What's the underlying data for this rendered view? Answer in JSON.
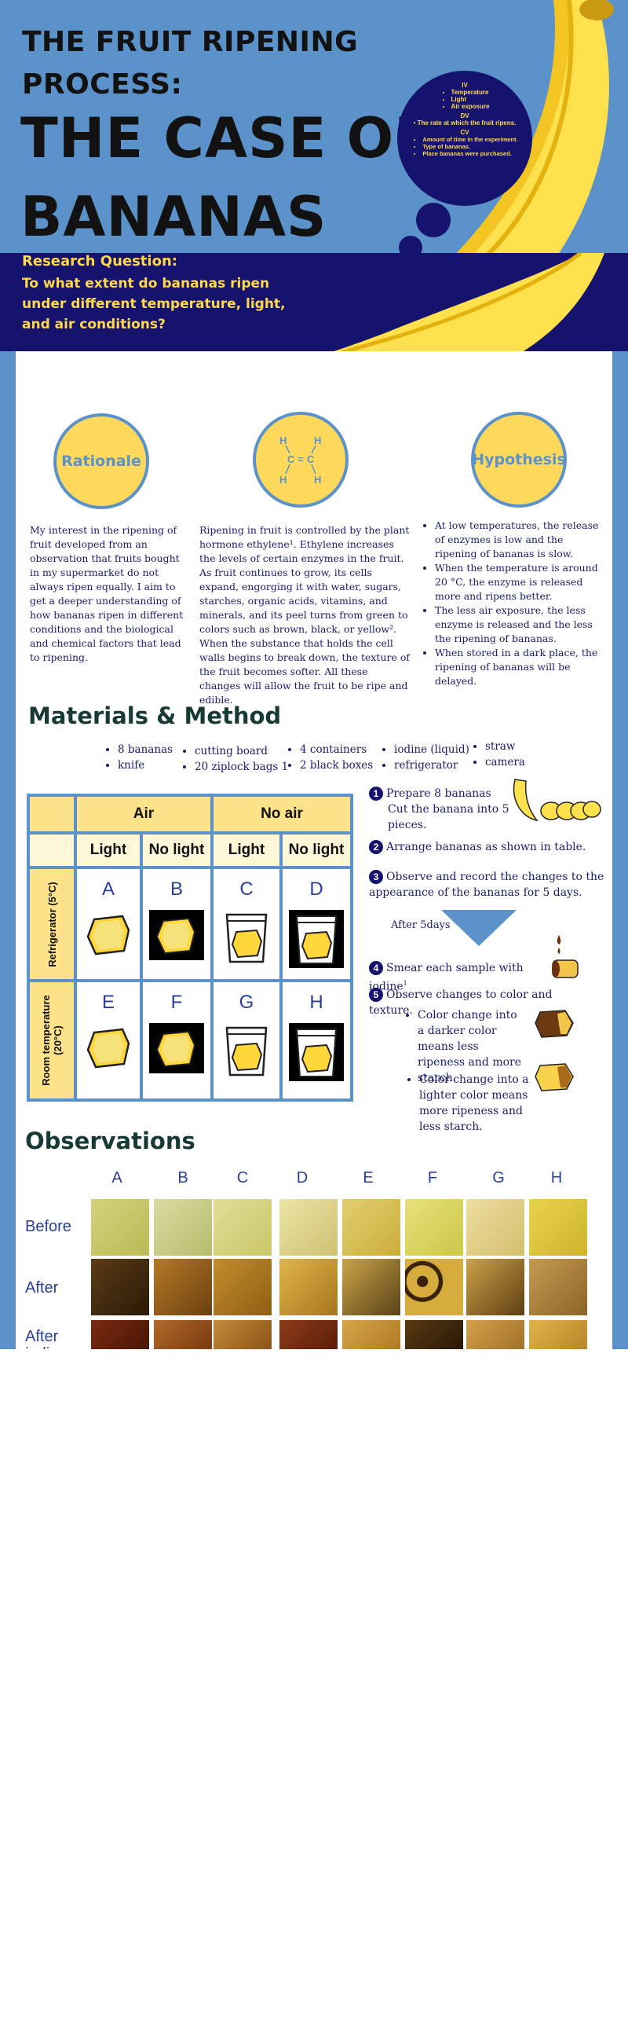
{
  "header": {
    "title_line1": "THE FRUIT RIPENING",
    "title_line2": "PROCESS:",
    "title_line3": "THE CASE OF",
    "title_line4": "BANANAS",
    "research_question_label": "Research Question:",
    "research_question": "To what extent do bananas ripen under different temperature, light, and air conditions?"
  },
  "variables": {
    "iv_label": "IV",
    "iv_items": [
      "Temperature",
      "Light",
      "Air exposure"
    ],
    "dv_label": "DV",
    "dv_text": "The rate at which the fruit ripens.",
    "cv_label": "CV",
    "cv_items": [
      "Amount of time in the experiment.",
      "Type of bananas.",
      "Place bananas were purchased."
    ]
  },
  "rationale": {
    "heading": "Rationale",
    "text": "My interest in the ripening of fruit developed from an observation that fruits bought in my supermarket do not always ripen equally. I aim to get a deeper understanding of how bananas ripen in different conditions and the biological and chemical factors that lead to ripening."
  },
  "molecule": {
    "h": "H",
    "c": "C",
    "eq": "="
  },
  "background": {
    "text": "Ripening in fruit is controlled by the plant hormone ethylene¹. Ethylene increases the levels of certain enzymes in the fruit. As fruit continues to grow, its cells expand, engorging it with water, sugars, starches, organic acids, vitamins, and minerals, and its peel turns from green to colors such as brown, black, or yellow². When the substance that holds the cell walls begins to break down, the texture of the fruit becomes softer. All these changes will allow the fruit to be ripe and edible."
  },
  "hypothesis": {
    "heading": "Hypothesis",
    "items": [
      "At low temperatures, the release of enzymes is low and the ripening of bananas is slow.",
      "When the temperature is around 20 °C, the enzyme is released more and ripens better.",
      "The less air exposure, the less enzyme is released and the less the ripening of bananas.",
      "When stored in a dark place, the ripening of bananas will be delayed."
    ]
  },
  "materials": {
    "title": "Materials & Method",
    "col1": [
      "8 bananas",
      "knife"
    ],
    "col2": [
      "cutting board",
      "20 ziplock bags 1"
    ],
    "col3": [
      "4 containers",
      "2 black boxes"
    ],
    "col4": [
      "iodine (liquid)",
      "refrigerator"
    ],
    "col5": [
      "straw",
      "camera"
    ]
  },
  "table": {
    "air": "Air",
    "no_air": "No air",
    "light": "Light",
    "no_light": "No light",
    "row1": "Refrigerator (5°C)",
    "row2_a": "Room temperature",
    "row2_b": "(20°C)",
    "samples": [
      "A",
      "B",
      "C",
      "D",
      "E",
      "F",
      "G",
      "H"
    ]
  },
  "steps": {
    "s1_num": "1",
    "s1_a": "Prepare 8 bananas",
    "s1_b": "Cut the banana into 5 pieces.",
    "s2_num": "2",
    "s2": "Arrange bananas as shown in table.",
    "s3_num": "3",
    "s3": "Observe and record the changes to the appearance of the bananas for 5 days.",
    "after": "After 5days",
    "s4_num": "4",
    "s4": "Smear each sample with iodine",
    "s4_sup": "1",
    "s5_num": "5",
    "s5": "Observe changes to color and texture.",
    "bullet1": "Color change into a darker color means less ripeness and more starch.",
    "bullet2": "Color change into a lighter color means more ripeness and less starch."
  },
  "observations": {
    "title": "Observations",
    "columns": [
      "A",
      "B",
      "C",
      "D",
      "E",
      "F",
      "G",
      "H"
    ],
    "rows": [
      "Before",
      "After",
      "After iodine"
    ]
  },
  "colors": {
    "blue": "#5b92c9",
    "navy": "#16136e",
    "yellow": "#ffd95c"
  }
}
